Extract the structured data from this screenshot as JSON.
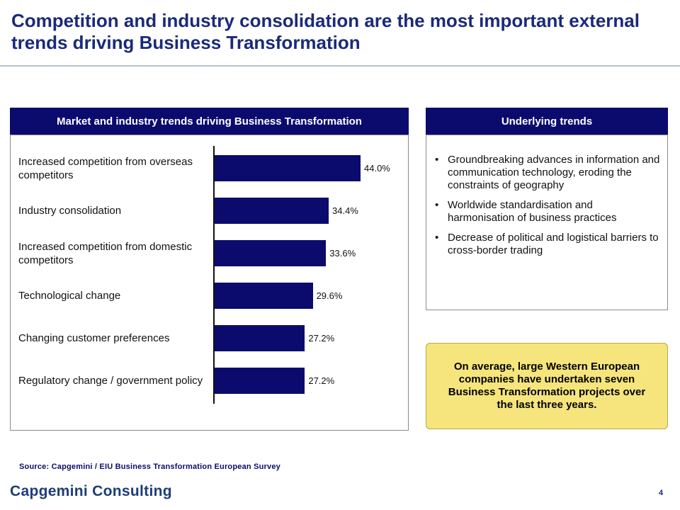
{
  "slide": {
    "title": "Competition and industry consolidation are the most important external trends driving Business Transformation",
    "page_number": "4",
    "source": "Source: Capgemini / EIU Business Transformation European Survey",
    "logo_text": "Capgemini Consulting"
  },
  "left_panel": {
    "header": "Market and industry trends driving Business Transformation"
  },
  "right_panel": {
    "header": "Underlying trends",
    "items": [
      "Groundbreaking advances in information and communication technology, eroding the constraints of geography",
      "Worldwide standardisation and harmonisation of business practices",
      "Decrease of political and logistical barriers to cross-border trading"
    ]
  },
  "callout": {
    "text": "On average, large Western European companies have undertaken seven Business Transformation projects over the last three years."
  },
  "colors": {
    "bar": "#0b0b6e",
    "header_bg": "#0b0b6e",
    "title": "#1a2a7a",
    "callout_bg": "#f6e57c"
  },
  "chart_data": {
    "type": "bar",
    "orientation": "horizontal",
    "title": "Market and industry trends driving Business Transformation",
    "categories": [
      "Increased competition from overseas competitors",
      "Industry consolidation",
      "Increased competition from domestic competitors",
      "Technological change",
      "Changing customer preferences",
      "Regulatory change / government policy"
    ],
    "values": [
      44.0,
      34.4,
      33.6,
      29.6,
      27.2,
      27.2
    ],
    "value_labels": [
      "44.0%",
      "34.4%",
      "33.6%",
      "29.6%",
      "27.2%",
      "27.2%"
    ],
    "unit": "%",
    "xlim": [
      0,
      50
    ],
    "grid": false,
    "legend": "none"
  }
}
